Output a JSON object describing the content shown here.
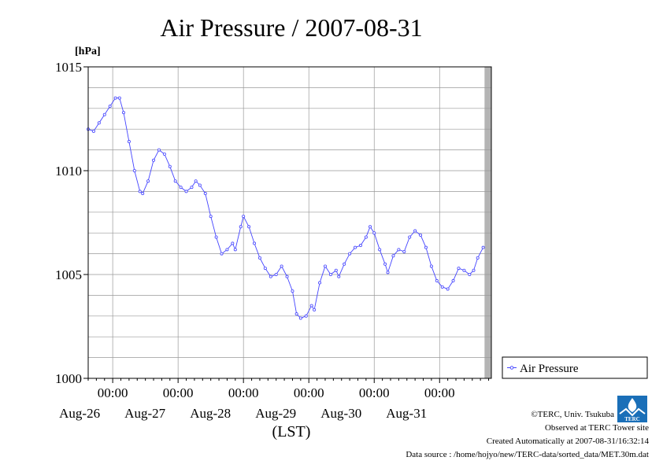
{
  "chart_data": {
    "type": "line",
    "title": "Air Pressure / 2007-08-31",
    "ylabel": "[hPa]",
    "xlabel": "(LST)",
    "ylim": [
      1000,
      1015
    ],
    "yticks": [
      1000,
      1005,
      1010,
      1015
    ],
    "ytick_labels": [
      "1000",
      "1005",
      "1010",
      "1015"
    ],
    "xlim": [
      "2007-08-25T15:00",
      "2007-08-31T19:00"
    ],
    "xticks": [
      {
        "time": "2007-08-26T00:00",
        "label": "00:00",
        "date": "Aug-26"
      },
      {
        "time": "2007-08-27T00:00",
        "label": "00:00",
        "date": "Aug-27"
      },
      {
        "time": "2007-08-28T00:00",
        "label": "00:00",
        "date": "Aug-28"
      },
      {
        "time": "2007-08-29T00:00",
        "label": "00:00",
        "date": "Aug-29"
      },
      {
        "time": "2007-08-30T00:00",
        "label": "00:00",
        "date": "Aug-30"
      },
      {
        "time": "2007-08-31T00:00",
        "label": "00:00",
        "date": "Aug-31"
      }
    ],
    "grid": true,
    "legend_position": "right",
    "no_data_shaded_from": "2007-08-31T16:30",
    "series": [
      {
        "name": "Air Pressure",
        "color": "#4444ff",
        "marker": "open-circle",
        "points": [
          {
            "x": "2007-08-25T15:00",
            "y": 1012.0
          },
          {
            "x": "2007-08-25T17:00",
            "y": 1011.9
          },
          {
            "x": "2007-08-25T19:00",
            "y": 1012.3
          },
          {
            "x": "2007-08-25T21:00",
            "y": 1012.7
          },
          {
            "x": "2007-08-25T23:00",
            "y": 1013.1
          },
          {
            "x": "2007-08-26T01:00",
            "y": 1013.5
          },
          {
            "x": "2007-08-26T02:30",
            "y": 1013.5
          },
          {
            "x": "2007-08-26T04:00",
            "y": 1012.8
          },
          {
            "x": "2007-08-26T06:00",
            "y": 1011.4
          },
          {
            "x": "2007-08-26T08:00",
            "y": 1010.0
          },
          {
            "x": "2007-08-26T10:00",
            "y": 1009.0
          },
          {
            "x": "2007-08-26T11:00",
            "y": 1008.9
          },
          {
            "x": "2007-08-26T13:00",
            "y": 1009.5
          },
          {
            "x": "2007-08-26T15:00",
            "y": 1010.5
          },
          {
            "x": "2007-08-26T17:00",
            "y": 1011.0
          },
          {
            "x": "2007-08-26T19:00",
            "y": 1010.8
          },
          {
            "x": "2007-08-26T21:00",
            "y": 1010.2
          },
          {
            "x": "2007-08-26T23:00",
            "y": 1009.5
          },
          {
            "x": "2007-08-27T01:00",
            "y": 1009.2
          },
          {
            "x": "2007-08-27T03:00",
            "y": 1009.0
          },
          {
            "x": "2007-08-27T05:00",
            "y": 1009.2
          },
          {
            "x": "2007-08-27T06:30",
            "y": 1009.5
          },
          {
            "x": "2007-08-27T08:00",
            "y": 1009.3
          },
          {
            "x": "2007-08-27T10:00",
            "y": 1008.9
          },
          {
            "x": "2007-08-27T12:00",
            "y": 1007.8
          },
          {
            "x": "2007-08-27T14:00",
            "y": 1006.8
          },
          {
            "x": "2007-08-27T16:00",
            "y": 1006.0
          },
          {
            "x": "2007-08-27T18:00",
            "y": 1006.2
          },
          {
            "x": "2007-08-27T20:00",
            "y": 1006.5
          },
          {
            "x": "2007-08-27T21:00",
            "y": 1006.2
          },
          {
            "x": "2007-08-27T23:00",
            "y": 1007.3
          },
          {
            "x": "2007-08-28T00:00",
            "y": 1007.8
          },
          {
            "x": "2007-08-28T02:00",
            "y": 1007.3
          },
          {
            "x": "2007-08-28T04:00",
            "y": 1006.5
          },
          {
            "x": "2007-08-28T06:00",
            "y": 1005.8
          },
          {
            "x": "2007-08-28T08:00",
            "y": 1005.3
          },
          {
            "x": "2007-08-28T10:00",
            "y": 1004.9
          },
          {
            "x": "2007-08-28T12:00",
            "y": 1005.0
          },
          {
            "x": "2007-08-28T14:00",
            "y": 1005.4
          },
          {
            "x": "2007-08-28T16:00",
            "y": 1004.9
          },
          {
            "x": "2007-08-28T18:00",
            "y": 1004.2
          },
          {
            "x": "2007-08-28T19:30",
            "y": 1003.1
          },
          {
            "x": "2007-08-28T21:00",
            "y": 1002.9
          },
          {
            "x": "2007-08-28T23:00",
            "y": 1003.0
          },
          {
            "x": "2007-08-29T01:00",
            "y": 1003.5
          },
          {
            "x": "2007-08-29T02:00",
            "y": 1003.3
          },
          {
            "x": "2007-08-29T04:00",
            "y": 1004.6
          },
          {
            "x": "2007-08-29T06:00",
            "y": 1005.4
          },
          {
            "x": "2007-08-29T08:00",
            "y": 1005.0
          },
          {
            "x": "2007-08-29T10:00",
            "y": 1005.2
          },
          {
            "x": "2007-08-29T11:00",
            "y": 1004.9
          },
          {
            "x": "2007-08-29T13:00",
            "y": 1005.5
          },
          {
            "x": "2007-08-29T15:00",
            "y": 1006.0
          },
          {
            "x": "2007-08-29T17:00",
            "y": 1006.3
          },
          {
            "x": "2007-08-29T19:00",
            "y": 1006.4
          },
          {
            "x": "2007-08-29T21:00",
            "y": 1006.8
          },
          {
            "x": "2007-08-29T22:30",
            "y": 1007.3
          },
          {
            "x": "2007-08-30T00:00",
            "y": 1007.0
          },
          {
            "x": "2007-08-30T02:00",
            "y": 1006.2
          },
          {
            "x": "2007-08-30T04:00",
            "y": 1005.5
          },
          {
            "x": "2007-08-30T05:00",
            "y": 1005.1
          },
          {
            "x": "2007-08-30T07:00",
            "y": 1005.9
          },
          {
            "x": "2007-08-30T09:00",
            "y": 1006.2
          },
          {
            "x": "2007-08-30T11:00",
            "y": 1006.1
          },
          {
            "x": "2007-08-30T13:00",
            "y": 1006.8
          },
          {
            "x": "2007-08-30T15:00",
            "y": 1007.1
          },
          {
            "x": "2007-08-30T17:00",
            "y": 1006.9
          },
          {
            "x": "2007-08-30T19:00",
            "y": 1006.3
          },
          {
            "x": "2007-08-30T21:00",
            "y": 1005.4
          },
          {
            "x": "2007-08-30T23:00",
            "y": 1004.7
          },
          {
            "x": "2007-08-31T01:00",
            "y": 1004.4
          },
          {
            "x": "2007-08-31T03:00",
            "y": 1004.3
          },
          {
            "x": "2007-08-31T05:00",
            "y": 1004.7
          },
          {
            "x": "2007-08-31T07:00",
            "y": 1005.3
          },
          {
            "x": "2007-08-31T09:00",
            "y": 1005.2
          },
          {
            "x": "2007-08-31T11:00",
            "y": 1005.0
          },
          {
            "x": "2007-08-31T12:30",
            "y": 1005.2
          },
          {
            "x": "2007-08-31T14:00",
            "y": 1005.8
          },
          {
            "x": "2007-08-31T16:00",
            "y": 1006.3
          }
        ],
        "points_note_removed": true
      }
    ]
  },
  "footer": {
    "copyright": "©TERC, Univ. Tsukuba",
    "observed": "Observed at TERC Tower site",
    "created": "Created Automatically at 2007-08-31/16:32:14",
    "source": "Data source : /home/hojyo/new/TERC-data/sorted_data/MET.30m.dat",
    "logo_text": "TERC"
  }
}
